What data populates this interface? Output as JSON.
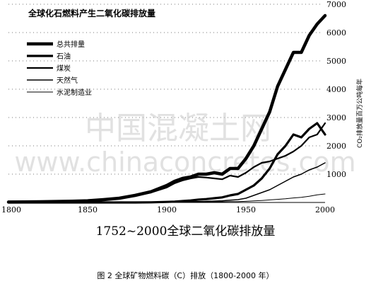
{
  "chart_data": {
    "type": "line",
    "title": "全球化石燃料产生二氧化碳排放量",
    "subtitle": "1752~2000全球二氧化碳排放量",
    "caption": "图 2 全球矿物燃料碳（C）排放（1800-2000 年）",
    "ylabel": "CO₂排放量百万公吨每年",
    "xlim": [
      1800,
      2000
    ],
    "ylim": [
      0,
      7000
    ],
    "xticks": [
      1800,
      1850,
      1900,
      1950,
      2000
    ],
    "yticks": [
      1000,
      2000,
      3000,
      4000,
      5000,
      6000,
      7000
    ],
    "grid": "dotted-horizontal",
    "legend_position": "top-left",
    "x": [
      1800,
      1810,
      1820,
      1830,
      1840,
      1850,
      1860,
      1870,
      1880,
      1890,
      1900,
      1905,
      1910,
      1915,
      1920,
      1925,
      1930,
      1935,
      1940,
      1945,
      1950,
      1955,
      1960,
      1965,
      1970,
      1975,
      1980,
      1985,
      1990,
      1995,
      2000
    ],
    "series": [
      {
        "name": "总共排量",
        "values": [
          15,
          20,
          25,
          35,
          45,
          60,
          100,
          150,
          250,
          380,
          600,
          750,
          850,
          900,
          1000,
          1000,
          1050,
          1000,
          1200,
          1200,
          1550,
          2000,
          2600,
          3200,
          4100,
          4700,
          5300,
          5300,
          5900,
          6300,
          6600
        ]
      },
      {
        "name": "石油",
        "values": [
          0,
          0,
          0,
          0,
          0,
          0,
          0,
          0,
          0,
          5,
          20,
          30,
          50,
          70,
          100,
          120,
          150,
          180,
          250,
          300,
          450,
          600,
          850,
          1200,
          1700,
          2000,
          2400,
          2300,
          2600,
          2800,
          2400
        ]
      },
      {
        "name": "煤炭",
        "values": [
          15,
          20,
          25,
          35,
          45,
          60,
          100,
          150,
          240,
          350,
          530,
          680,
          780,
          850,
          900,
          880,
          850,
          820,
          950,
          900,
          1050,
          1250,
          1400,
          1450,
          1550,
          1650,
          1800,
          2000,
          2300,
          2400,
          2800
        ]
      },
      {
        "name": "天然气",
        "values": [
          0,
          0,
          0,
          0,
          0,
          0,
          0,
          0,
          0,
          5,
          10,
          15,
          20,
          25,
          30,
          40,
          50,
          60,
          80,
          100,
          150,
          250,
          350,
          450,
          600,
          750,
          900,
          1000,
          1150,
          1250,
          1400
        ]
      },
      {
        "name": "水泥制造业",
        "values": [
          0,
          0,
          0,
          0,
          0,
          0,
          0,
          0,
          0,
          0,
          0,
          5,
          8,
          10,
          12,
          15,
          20,
          25,
          30,
          30,
          40,
          55,
          70,
          90,
          110,
          130,
          160,
          180,
          220,
          270,
          300
        ]
      }
    ]
  },
  "watermark": {
    "line1": "中国混凝土网",
    "line2": "www.chinaconcretes.com"
  },
  "styles": {
    "line_color": "#000000",
    "watermark_color": "#c9c9c9"
  }
}
